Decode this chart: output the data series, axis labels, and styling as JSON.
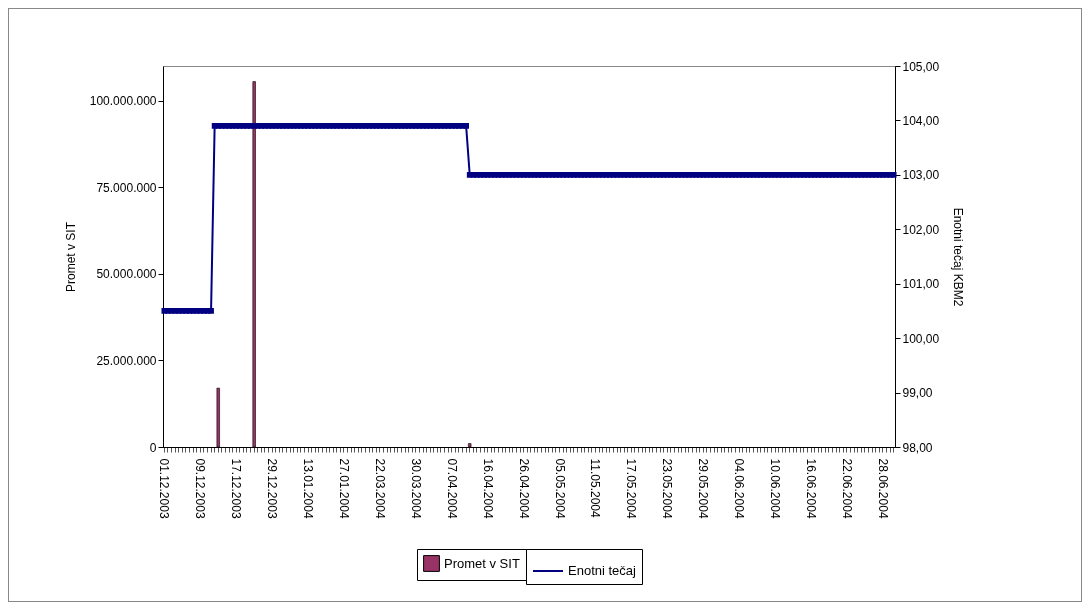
{
  "chart_data": {
    "type": "bar",
    "xlabel": null,
    "ylabel": "Promet v SIT",
    "y2label": "Enotni tečaj KBM2",
    "legend": "bottom",
    "grid": false,
    "marker": "square",
    "line_style": "solid",
    "categories": [
      "01.12.2003",
      null,
      null,
      null,
      null,
      null,
      null,
      null,
      null,
      null,
      "09.12.2003",
      null,
      null,
      null,
      null,
      null,
      null,
      null,
      null,
      null,
      "17.12.2003",
      null,
      null,
      null,
      null,
      null,
      null,
      null,
      null,
      null,
      "29.12.2003",
      null,
      null,
      null,
      null,
      null,
      null,
      null,
      null,
      null,
      "13.01.2004",
      null,
      null,
      null,
      null,
      null,
      null,
      null,
      null,
      null,
      "27.01.2004",
      null,
      null,
      null,
      null,
      null,
      null,
      null,
      null,
      null,
      "22.03.2004",
      null,
      null,
      null,
      null,
      null,
      null,
      null,
      null,
      null,
      "30.03.2004",
      null,
      null,
      null,
      null,
      null,
      null,
      null,
      null,
      null,
      "07.04.2004",
      null,
      null,
      null,
      null,
      null,
      null,
      null,
      null,
      null,
      "16.04.2004",
      null,
      null,
      null,
      null,
      null,
      null,
      null,
      null,
      null,
      "26.04.2004",
      null,
      null,
      null,
      null,
      null,
      null,
      null,
      null,
      null,
      "05.05.2004",
      null,
      null,
      null,
      null,
      null,
      null,
      null,
      null,
      null,
      "11.05.2004",
      null,
      null,
      null,
      null,
      null,
      null,
      null,
      null,
      null,
      "17.05.2004",
      null,
      null,
      null,
      null,
      null,
      null,
      null,
      null,
      null,
      "23.05.2004",
      null,
      null,
      null,
      null,
      null,
      null,
      null,
      null,
      null,
      "29.05.2004",
      null,
      null,
      null,
      null,
      null,
      null,
      null,
      null,
      null,
      "04.06.2004",
      null,
      null,
      null,
      null,
      null,
      null,
      null,
      null,
      null,
      "10.06.2004",
      null,
      null,
      null,
      null,
      null,
      null,
      null,
      null,
      null,
      "16.06.2004",
      null,
      null,
      null,
      null,
      null,
      null,
      null,
      null,
      null,
      "22.06.2004",
      null,
      null,
      null,
      null,
      null,
      null,
      null,
      null,
      null,
      "28.06.2004",
      null,
      null,
      null
    ],
    "ylim": [
      0,
      110000000
    ],
    "yticks": [
      0,
      {
        "value": 25000000,
        "label": "25.000.000"
      },
      {
        "value": 50000000,
        "label": "50.000.000"
      },
      {
        "value": 75000000,
        "label": "75.000.000"
      },
      {
        "value": 100000000,
        "label": "100.000.000"
      }
    ],
    "y2lim": [
      98,
      105
    ],
    "y2ticks": [
      {
        "value": 98,
        "label": "98,00"
      },
      {
        "value": 99,
        "label": "99,00"
      },
      {
        "value": 100,
        "label": "100,00"
      },
      {
        "value": 101,
        "label": "101,00"
      },
      {
        "value": 102,
        "label": "102,00"
      },
      {
        "value": 103,
        "label": "103,00"
      },
      {
        "value": 104,
        "label": "104,00"
      },
      {
        "value": 105,
        "label": "105,00"
      }
    ],
    "series": [
      {
        "name": "Promet v SIT",
        "color": "#993366",
        "values": [
          null,
          null,
          null,
          null,
          null,
          null,
          null,
          null,
          null,
          null,
          null,
          null,
          null,
          null,
          null,
          17000000,
          null,
          null,
          null,
          null,
          null,
          null,
          null,
          null,
          null,
          105500000,
          null,
          null,
          null,
          null,
          null,
          null,
          null,
          null,
          null,
          null,
          null,
          null,
          null,
          null,
          null,
          null,
          null,
          null,
          null,
          null,
          null,
          null,
          null,
          null,
          null,
          null,
          null,
          null,
          null,
          null,
          null,
          null,
          null,
          null,
          null,
          null,
          null,
          null,
          null,
          null,
          null,
          null,
          null,
          null,
          null,
          null,
          null,
          null,
          null,
          null,
          null,
          null,
          null,
          null,
          null,
          null,
          null,
          null,
          null,
          1000000,
          null,
          null,
          null,
          null,
          null,
          null,
          null,
          null,
          null,
          null,
          null,
          null,
          null,
          null,
          null,
          null,
          null,
          null,
          null,
          null,
          null,
          null,
          null,
          null,
          null,
          null,
          null,
          null,
          null,
          null,
          null,
          null,
          null,
          null,
          null,
          null,
          null,
          null,
          null,
          null,
          null,
          null,
          null,
          null,
          null,
          null,
          null,
          null,
          null,
          null,
          null,
          null,
          null,
          null,
          null,
          null,
          null,
          null,
          null,
          null,
          null,
          null,
          null,
          null,
          null,
          null,
          null,
          null,
          null,
          null,
          null,
          null,
          null,
          null,
          null,
          null,
          null,
          null,
          null,
          null,
          null,
          null,
          null,
          null,
          null,
          null,
          null,
          null,
          null,
          null,
          null,
          null,
          null,
          null,
          null,
          null,
          null,
          null,
          null,
          null,
          null,
          null,
          null,
          null,
          null,
          null,
          null,
          null,
          null,
          null,
          null,
          null,
          null,
          null,
          null,
          null,
          null,
          null
        ]
      },
      {
        "name": "Enotni tečaj",
        "type": "line",
        "axis": "y2",
        "color": "#000080",
        "values": [
          100.5,
          100.5,
          100.5,
          100.5,
          100.5,
          100.5,
          100.5,
          100.5,
          100.5,
          100.5,
          100.5,
          100.5,
          100.5,
          100.5,
          103.9,
          103.9,
          103.9,
          103.9,
          103.9,
          103.9,
          103.9,
          103.9,
          103.9,
          103.9,
          103.9,
          103.9,
          103.9,
          103.9,
          103.9,
          103.9,
          103.9,
          103.9,
          103.9,
          103.9,
          103.9,
          103.9,
          103.9,
          103.9,
          103.9,
          103.9,
          103.9,
          103.9,
          103.9,
          103.9,
          103.9,
          103.9,
          103.9,
          103.9,
          103.9,
          103.9,
          103.9,
          103.9,
          103.9,
          103.9,
          103.9,
          103.9,
          103.9,
          103.9,
          103.9,
          103.9,
          103.9,
          103.9,
          103.9,
          103.9,
          103.9,
          103.9,
          103.9,
          103.9,
          103.9,
          103.9,
          103.9,
          103.9,
          103.9,
          103.9,
          103.9,
          103.9,
          103.9,
          103.9,
          103.9,
          103.9,
          103.9,
          103.9,
          103.9,
          103.9,
          103.9,
          103,
          103,
          103,
          103,
          103,
          103,
          103,
          103,
          103,
          103,
          103,
          103,
          103,
          103,
          103,
          103,
          103,
          103,
          103,
          103,
          103,
          103,
          103,
          103,
          103,
          103,
          103,
          103,
          103,
          103,
          103,
          103,
          103,
          103,
          103,
          103,
          103,
          103,
          103,
          103,
          103,
          103,
          103,
          103,
          103,
          103,
          103,
          103,
          103,
          103,
          103,
          103,
          103,
          103,
          103,
          103,
          103,
          103,
          103,
          103,
          103,
          103,
          103,
          103,
          103,
          103,
          103,
          103,
          103,
          103,
          103,
          103,
          103,
          103,
          103,
          103,
          103,
          103,
          103,
          103,
          103,
          103,
          103,
          103,
          103,
          103,
          103,
          103,
          103,
          103,
          103,
          103,
          103,
          103,
          103,
          103,
          103,
          103,
          103,
          103,
          103,
          103,
          103,
          103,
          103,
          103,
          103,
          103,
          103,
          103,
          103,
          103,
          103,
          103,
          103,
          103,
          103,
          103,
          103
        ]
      }
    ]
  }
}
